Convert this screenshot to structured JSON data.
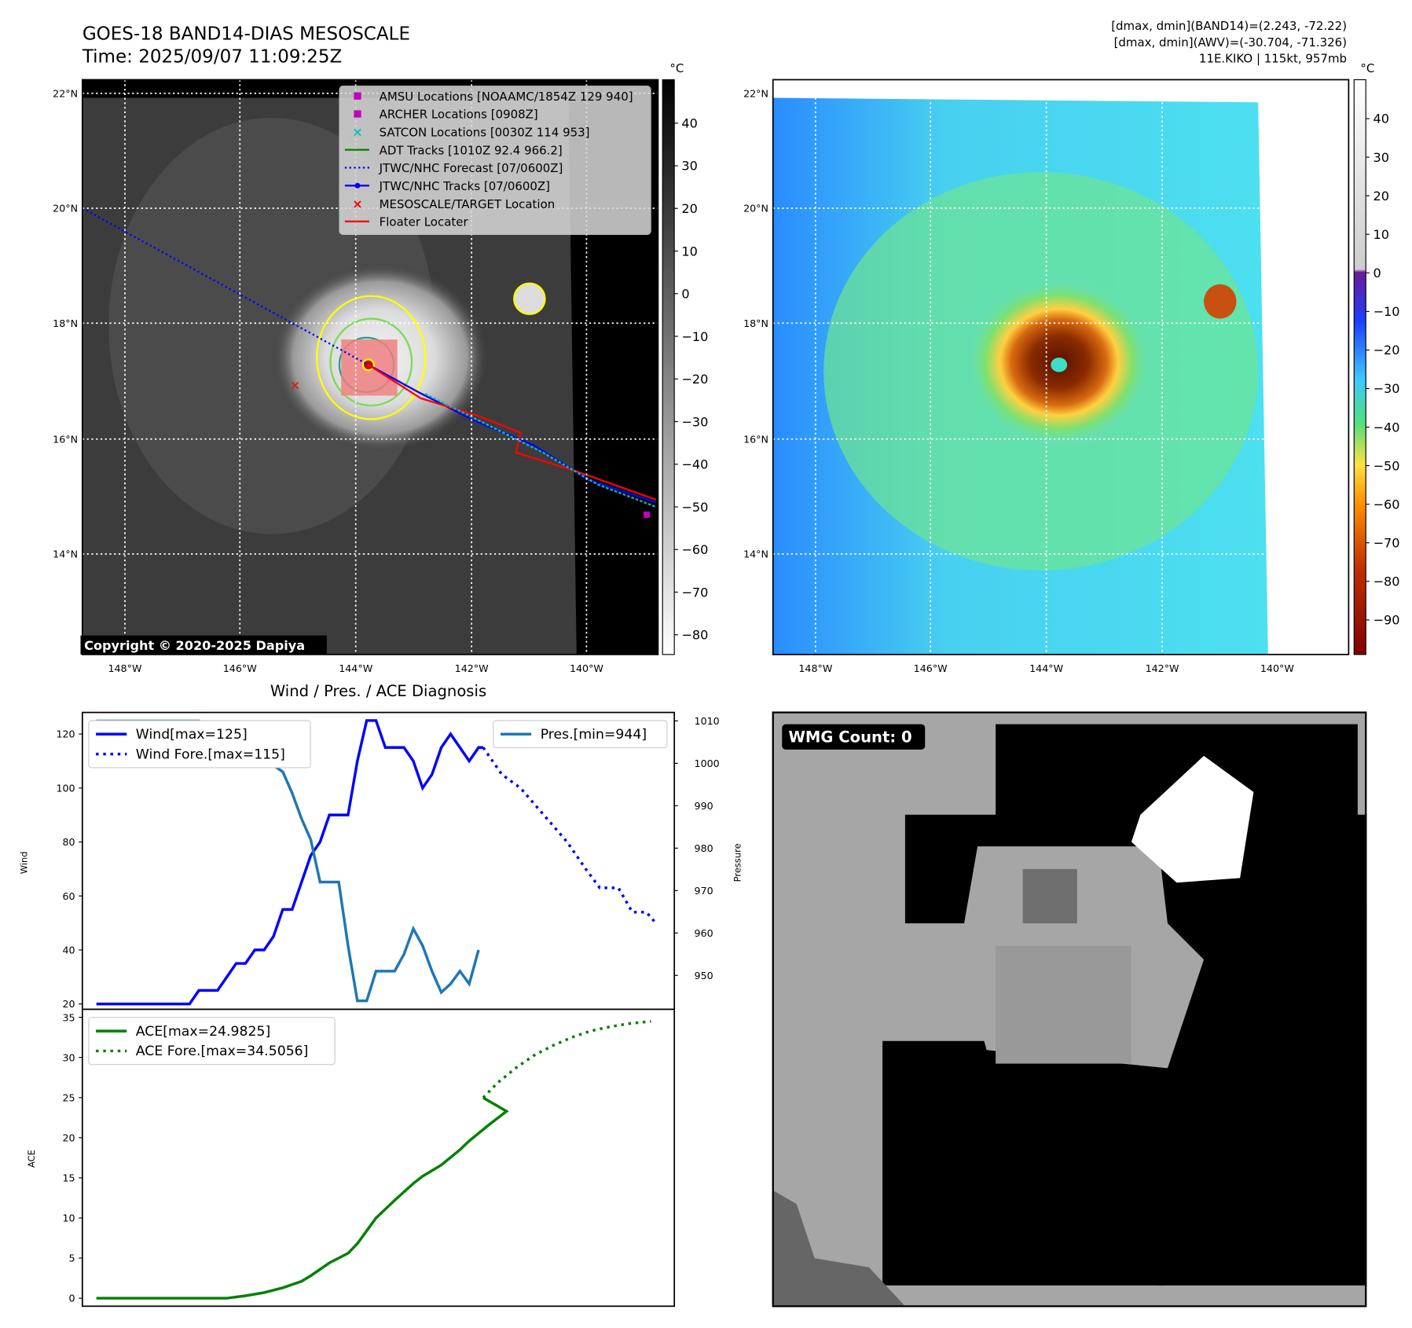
{
  "header": {
    "title": "GOES-18 BAND14-DIAS MESOSCALE",
    "time": "Time: 2025/09/07 11:09:25Z",
    "info_line1": "[dmax, dmin](BAND14)=(2.243, -72.22)",
    "info_line2": "[dmax, dmin](AWV)=(-30.704, -71.326)",
    "info_line3": "11E.KIKO | 115kt, 957mb"
  },
  "map": {
    "lat_ticks": [
      "22°N",
      "20°N",
      "18°N",
      "16°N",
      "14°N"
    ],
    "lon_ticks": [
      "148°W",
      "146°W",
      "144°W",
      "142°W",
      "140°W"
    ],
    "copyright": "Copyright © 2020-2025 Dapiya",
    "colorbar_unit": "°C",
    "left_colorbar_ticks": [
      "40",
      "30",
      "20",
      "10",
      "0",
      "−10",
      "−20",
      "−30",
      "−40",
      "−50",
      "−60",
      "−70",
      "−80"
    ],
    "right_colorbar_ticks": [
      "40",
      "30",
      "20",
      "10",
      "0",
      "−10",
      "−20",
      "−30",
      "−40",
      "−50",
      "−60",
      "−70",
      "−80",
      "−90"
    ],
    "legend": [
      {
        "label": "AMSU Locations [NOAAMC/1854Z 129 940]",
        "marker": "square",
        "color": "#c000c0"
      },
      {
        "label": "ARCHER Locations [0908Z]",
        "marker": "square",
        "color": "#c000c0"
      },
      {
        "label": "SATCON Locations [0030Z 114 953]",
        "marker": "x",
        "color": "#00c0c0"
      },
      {
        "label": "ADT Tracks [1010Z 92.4 966.2]",
        "marker": "line",
        "color": "#008000"
      },
      {
        "label": "JTWC/NHC Forecast [07/0600Z]",
        "marker": "dotted",
        "color": "#0000ff"
      },
      {
        "label": "JTWC/NHC Tracks [07/0600Z]",
        "marker": "line-dot",
        "color": "#0000ff"
      },
      {
        "label": "MESOSCALE/TARGET Location",
        "marker": "x",
        "color": "#ff0000"
      },
      {
        "label": "Floater Locater",
        "marker": "line",
        "color": "#ff0000"
      }
    ]
  },
  "wmg": {
    "label": "WMG Count: 0"
  },
  "chart_data": [
    {
      "type": "line",
      "title": "Wind / Pres. / ACE Diagnosis",
      "ylabel": "Wind",
      "y2label": "Pressure",
      "ylim": [
        18,
        128
      ],
      "y2lim": [
        942,
        1012
      ],
      "yticks": [
        20,
        40,
        60,
        80,
        100,
        120
      ],
      "y2ticks": [
        950,
        960,
        970,
        980,
        990,
        1000,
        1010
      ],
      "xlim": [
        -1.5,
        62
      ],
      "series": [
        {
          "name": "Wind[max=125]",
          "axis": "left",
          "style": "solid",
          "color": "#0000ff",
          "points": [
            [
              0,
              20
            ],
            [
              10,
              20
            ],
            [
              11,
              25
            ],
            [
              13,
              25
            ],
            [
              14,
              30
            ],
            [
              15,
              35
            ],
            [
              16,
              35
            ],
            [
              17,
              40
            ],
            [
              18,
              40
            ],
            [
              19,
              45
            ],
            [
              20,
              55
            ],
            [
              21,
              55
            ],
            [
              22,
              65
            ],
            [
              23,
              75
            ],
            [
              24,
              80
            ],
            [
              25,
              90
            ],
            [
              27,
              90
            ],
            [
              28,
              110
            ],
            [
              29,
              125
            ],
            [
              30,
              125
            ],
            [
              31,
              115
            ],
            [
              33,
              115
            ],
            [
              34,
              110
            ],
            [
              35,
              100
            ],
            [
              36,
              105
            ],
            [
              37,
              115
            ],
            [
              38,
              120
            ],
            [
              39,
              115
            ],
            [
              40,
              110
            ],
            [
              41,
              115
            ],
            [
              41.5,
              115
            ]
          ]
        },
        {
          "name": "Wind Fore.[max=115]",
          "axis": "left",
          "style": "dotted",
          "color": "#0000ff",
          "points": [
            [
              41.5,
              115
            ],
            [
              42.5,
              110
            ],
            [
              43.5,
              105
            ],
            [
              45.5,
              100
            ],
            [
              48,
              90
            ],
            [
              50.5,
              80
            ],
            [
              52.5,
              70
            ],
            [
              54,
              63
            ],
            [
              56,
              63
            ],
            [
              57.5,
              54
            ],
            [
              59,
              54
            ],
            [
              60,
              50
            ]
          ]
        },
        {
          "name": "Pres.[min=944]",
          "axis": "right",
          "style": "solid",
          "color": "#1f77b4",
          "points": [
            [
              0,
              1010
            ],
            [
              11,
              1010
            ],
            [
              12,
              1009
            ],
            [
              14,
              1009
            ],
            [
              15,
              1007
            ],
            [
              17,
              1005
            ],
            [
              18,
              1001
            ],
            [
              20,
              998
            ],
            [
              21,
              993
            ],
            [
              22,
              987
            ],
            [
              23,
              982
            ],
            [
              24,
              972
            ],
            [
              26,
              972
            ],
            [
              27,
              957
            ],
            [
              28,
              944
            ],
            [
              29,
              944
            ],
            [
              30,
              951
            ],
            [
              32,
              951
            ],
            [
              33,
              955
            ],
            [
              34,
              961
            ],
            [
              35,
              957
            ],
            [
              36,
              951
            ],
            [
              37,
              946
            ],
            [
              38,
              948
            ],
            [
              39,
              951
            ],
            [
              40,
              948
            ],
            [
              41,
              956
            ]
          ]
        }
      ]
    },
    {
      "type": "line",
      "ylabel": "ACE",
      "ylim": [
        -1,
        36
      ],
      "yticks": [
        0,
        5,
        10,
        15,
        20,
        25,
        30,
        35
      ],
      "xlim": [
        -1.5,
        62
      ],
      "series": [
        {
          "name": "ACE[max=24.9825]",
          "style": "solid",
          "color": "#008000",
          "points": [
            [
              0,
              0
            ],
            [
              14,
              0
            ],
            [
              16,
              0.3
            ],
            [
              18,
              0.7
            ],
            [
              20,
              1.3
            ],
            [
              22,
              2.1
            ],
            [
              23,
              2.8
            ],
            [
              25,
              4.4
            ],
            [
              27,
              5.6
            ],
            [
              28,
              6.8
            ],
            [
              29,
              8.4
            ],
            [
              30,
              10
            ],
            [
              32,
              12.2
            ],
            [
              34,
              14.3
            ],
            [
              35,
              15.2
            ],
            [
              37,
              16.6
            ],
            [
              39,
              18.5
            ],
            [
              40,
              19.6
            ],
            [
              42,
              21.5
            ],
            [
              44,
              23.3
            ],
            [
              41.5,
              24.98
            ]
          ]
        },
        {
          "name": "ACE Fore.[max=34.5056]",
          "style": "dotted",
          "color": "#008000",
          "points": [
            [
              41.5,
              24.98
            ],
            [
              43,
              26.8
            ],
            [
              45,
              28.7
            ],
            [
              47,
              30.3
            ],
            [
              49,
              31.5
            ],
            [
              51,
              32.5
            ],
            [
              53,
              33.3
            ],
            [
              55,
              33.8
            ],
            [
              57,
              34.2
            ],
            [
              59.5,
              34.5
            ]
          ]
        }
      ]
    }
  ]
}
